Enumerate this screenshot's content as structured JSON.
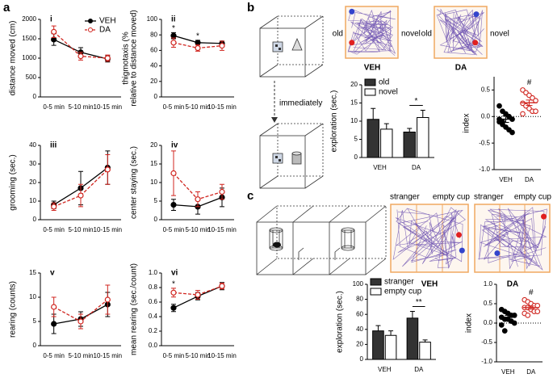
{
  "figure": {
    "panels": [
      "a",
      "b",
      "c"
    ],
    "b_tracks": [
      {
        "left": "old",
        "right": "novel",
        "group": "VEH"
      },
      {
        "left": "old",
        "right": "novel",
        "group": "DA"
      }
    ],
    "b_diagram": "immediately",
    "c_tracks": [
      {
        "left": "stranger",
        "right": "empty cup",
        "group": "VEH"
      },
      {
        "left": "stranger",
        "right": "empty cup",
        "group": "DA"
      }
    ]
  },
  "chart_data": [
    {
      "type": "line",
      "label": "i",
      "ylabel": [
        "distance moved (cm)"
      ],
      "categories": [
        "0-5 min",
        "5-10 min",
        "10-15 min"
      ],
      "ylim": [
        0,
        2000
      ],
      "yticks": [
        0,
        500,
        1000,
        1500,
        2000
      ],
      "legend": "upper right",
      "series": [
        {
          "name": "VEH",
          "color": "#000000",
          "marker": "filled",
          "dashed": false,
          "values": [
            1480,
            1150,
            980
          ],
          "errors": [
            150,
            120,
            80
          ]
        },
        {
          "name": "DA",
          "color": "#d0251f",
          "marker": "open",
          "dashed": true,
          "values": [
            1680,
            1050,
            1000
          ],
          "errors": [
            150,
            100,
            80
          ]
        }
      ]
    },
    {
      "type": "line",
      "label": "ii",
      "ylabel": [
        "thigmotaxis (%",
        "relative to distance moved)"
      ],
      "categories": [
        "0-5 min",
        "5-10 min",
        "10-15 min"
      ],
      "ylim": [
        0,
        100
      ],
      "yticks": [
        0,
        20,
        40,
        60,
        80,
        100
      ],
      "annotations": [
        "*",
        "*"
      ],
      "series": [
        {
          "name": "VEH",
          "color": "#000000",
          "marker": "filled",
          "dashed": false,
          "values": [
            79,
            70,
            69
          ],
          "errors": [
            4,
            3,
            3
          ]
        },
        {
          "name": "DA",
          "color": "#d0251f",
          "marker": "open",
          "dashed": true,
          "values": [
            70,
            63,
            66
          ],
          "errors": [
            6,
            4,
            6
          ]
        }
      ]
    },
    {
      "type": "line",
      "label": "iii",
      "ylabel": [
        "grooming (sec.)"
      ],
      "categories": [
        "0-5 min",
        "5-10 min",
        "10-15 min"
      ],
      "ylim": [
        0,
        40
      ],
      "yticks": [
        0,
        10,
        20,
        30,
        40
      ],
      "series": [
        {
          "name": "VEH",
          "color": "#000000",
          "marker": "filled",
          "dashed": false,
          "values": [
            8,
            17,
            28
          ],
          "errors": [
            2,
            9,
            9
          ]
        },
        {
          "name": "DA",
          "color": "#d0251f",
          "marker": "open",
          "dashed": true,
          "values": [
            7,
            13,
            27
          ],
          "errors": [
            2,
            6,
            8
          ]
        }
      ]
    },
    {
      "type": "line",
      "label": "iv",
      "ylabel": [
        "center staying (sec.)"
      ],
      "categories": [
        "0-5 min",
        "5-10 min",
        "10-15 min"
      ],
      "ylim": [
        0,
        20
      ],
      "yticks": [
        0,
        5,
        10,
        15,
        20
      ],
      "series": [
        {
          "name": "VEH",
          "color": "#000000",
          "marker": "filled",
          "dashed": false,
          "values": [
            4,
            3.5,
            6
          ],
          "errors": [
            1.5,
            2,
            2.5
          ]
        },
        {
          "name": "DA",
          "color": "#d0251f",
          "marker": "open",
          "dashed": true,
          "values": [
            12.5,
            5.5,
            7.5
          ],
          "errors": [
            6,
            2,
            2
          ]
        }
      ]
    },
    {
      "type": "line",
      "label": "v",
      "ylabel": [
        "rearing (counts)"
      ],
      "categories": [
        "0-5 min",
        "5-10 min",
        "10-15 min"
      ],
      "ylim": [
        0,
        15
      ],
      "yticks": [
        0,
        5,
        10,
        15
      ],
      "series": [
        {
          "name": "VEH",
          "color": "#000000",
          "marker": "filled",
          "dashed": false,
          "values": [
            4.5,
            5.5,
            8.5
          ],
          "errors": [
            2,
            1.5,
            2.5
          ]
        },
        {
          "name": "DA",
          "color": "#d0251f",
          "marker": "open",
          "dashed": true,
          "values": [
            8,
            5,
            9.5
          ],
          "errors": [
            2,
            1.5,
            3
          ]
        }
      ]
    },
    {
      "type": "line",
      "label": "vi",
      "ylabel": [
        "mean rearing (sec./count)"
      ],
      "categories": [
        "0-5 min",
        "5-10 min",
        "10-15 min"
      ],
      "ylim": [
        0,
        1.0
      ],
      "yticks": [
        {
          "value": 0,
          "label": "0.0"
        },
        {
          "value": 0.2,
          "label": "0.2"
        },
        {
          "value": 0.4,
          "label": "0.4"
        },
        {
          "value": 0.6,
          "label": "0.6"
        },
        {
          "value": 0.8,
          "label": "0.8"
        },
        {
          "value": 1.0,
          "label": "1.0"
        }
      ],
      "annotations": [
        "*"
      ],
      "series": [
        {
          "name": "VEH",
          "color": "#000000",
          "marker": "filled",
          "dashed": false,
          "values": [
            0.52,
            0.68,
            0.82
          ],
          "errors": [
            0.05,
            0.05,
            0.05
          ]
        },
        {
          "name": "DA",
          "color": "#d0251f",
          "marker": "open",
          "dashed": true,
          "values": [
            0.73,
            0.7,
            0.82
          ],
          "errors": [
            0.06,
            0.06,
            0.04
          ]
        }
      ]
    },
    {
      "type": "bar",
      "ylabel": [
        "exploration (sec.)"
      ],
      "categories": [
        "VEH",
        "DA"
      ],
      "ylim": [
        0,
        20
      ],
      "yticks": [
        0,
        5,
        10,
        15,
        20
      ],
      "legend": "upper left",
      "annotations": [
        "*"
      ],
      "series": [
        {
          "name": "old",
          "color": "#333333",
          "values": [
            10.5,
            7
          ],
          "errors": [
            3,
            1
          ]
        },
        {
          "name": "novel",
          "color": "#ffffff",
          "values": [
            7.8,
            11
          ],
          "errors": [
            1.5,
            2
          ]
        }
      ]
    },
    {
      "type": "dot",
      "ylabel": [
        "index"
      ],
      "ylim": [
        -1.0,
        0.75
      ],
      "ref_line": 0,
      "yticks": [
        {
          "value": -1,
          "label": "-1.0"
        },
        {
          "value": -0.5,
          "label": "-0.5"
        },
        {
          "value": 0,
          "label": "0.0"
        },
        {
          "value": 0.5,
          "label": "0.5"
        }
      ],
      "annotations": [
        "#"
      ],
      "groups": [
        {
          "label": "VEH",
          "color": "#000000",
          "marker": "filled",
          "mean": -0.05,
          "sem": 0.06,
          "values": [
            0.2,
            0.1,
            0.05,
            0.0,
            -0.05,
            -0.1,
            -0.15,
            -0.2,
            -0.25,
            -0.3,
            -0.05,
            -0.1
          ]
        },
        {
          "label": "DA",
          "color": "#d0251f",
          "marker": "open",
          "mean": 0.26,
          "sem": 0.05,
          "values": [
            0.5,
            0.45,
            0.4,
            0.35,
            0.3,
            0.25,
            0.2,
            0.15,
            0.1,
            0.1,
            0.05
          ]
        }
      ]
    },
    {
      "type": "bar",
      "ylabel": [
        "exploration (sec.)"
      ],
      "categories": [
        "VEH",
        "DA"
      ],
      "ylim": [
        0,
        100
      ],
      "yticks": [
        0,
        20,
        40,
        60,
        80,
        100
      ],
      "legend": "upper left",
      "annotations": [
        "**"
      ],
      "series": [
        {
          "name": "stranger",
          "color": "#333333",
          "values": [
            38,
            55
          ],
          "errors": [
            7,
            9
          ]
        },
        {
          "name": "empty cup",
          "color": "#ffffff",
          "values": [
            32,
            23
          ],
          "errors": [
            6,
            3
          ]
        }
      ]
    },
    {
      "type": "dot",
      "ylabel": [
        "index"
      ],
      "ylim": [
        -1.0,
        1.0
      ],
      "ref_line": 0,
      "yticks": [
        {
          "value": -1,
          "label": "-1.0"
        },
        {
          "value": -0.5,
          "label": "-0.5"
        },
        {
          "value": 0,
          "label": "0.0"
        },
        {
          "value": 0.5,
          "label": "0.5"
        },
        {
          "value": 1,
          "label": "1.0"
        }
      ],
      "annotations": [
        "#"
      ],
      "groups": [
        {
          "label": "VEH",
          "color": "#000000",
          "marker": "filled",
          "mean": 0.15,
          "sem": 0.05,
          "values": [
            0.35,
            0.3,
            0.25,
            0.2,
            0.2,
            0.15,
            0.1,
            0.1,
            0.05,
            0.0,
            -0.05,
            -0.2
          ]
        },
        {
          "label": "DA",
          "color": "#d0251f",
          "marker": "open",
          "mean": 0.4,
          "sem": 0.04,
          "values": [
            0.6,
            0.55,
            0.5,
            0.45,
            0.45,
            0.4,
            0.4,
            0.35,
            0.3,
            0.3,
            0.25,
            0.2
          ]
        }
      ]
    }
  ]
}
